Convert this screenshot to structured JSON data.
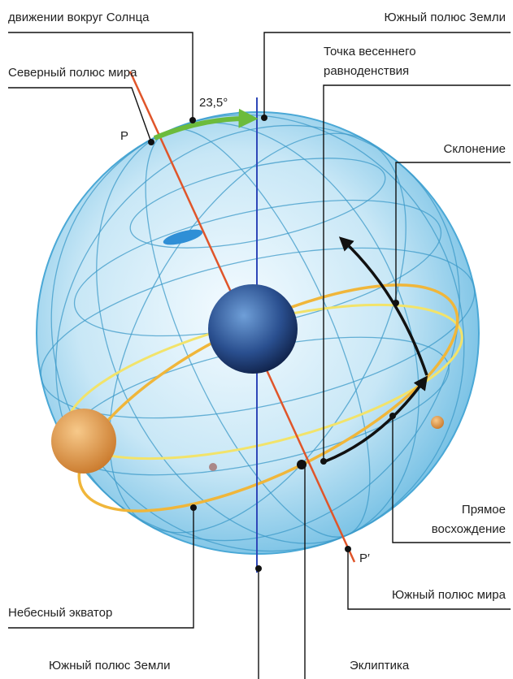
{
  "labels": {
    "orbit_caption": "движении вокруг Солнца",
    "earth_south_pole_top": "Южный полюс Земли",
    "vernal_equinox": [
      "Точка весеннего",
      "равноденствия"
    ],
    "north_celestial_pole": "Северный полюс мира",
    "tilt_angle": "23,5°",
    "pole_p": "P",
    "declination": "Склонение",
    "right_ascension": [
      "Прямое",
      "восхождение"
    ],
    "pole_p_prime": "P′",
    "south_celestial_pole": "Южный полюс мира",
    "celestial_equator": "Небесный экватор",
    "earth_south_pole_bottom": "Южный полюс Земли",
    "ecliptic": "Эклиптика"
  }
}
